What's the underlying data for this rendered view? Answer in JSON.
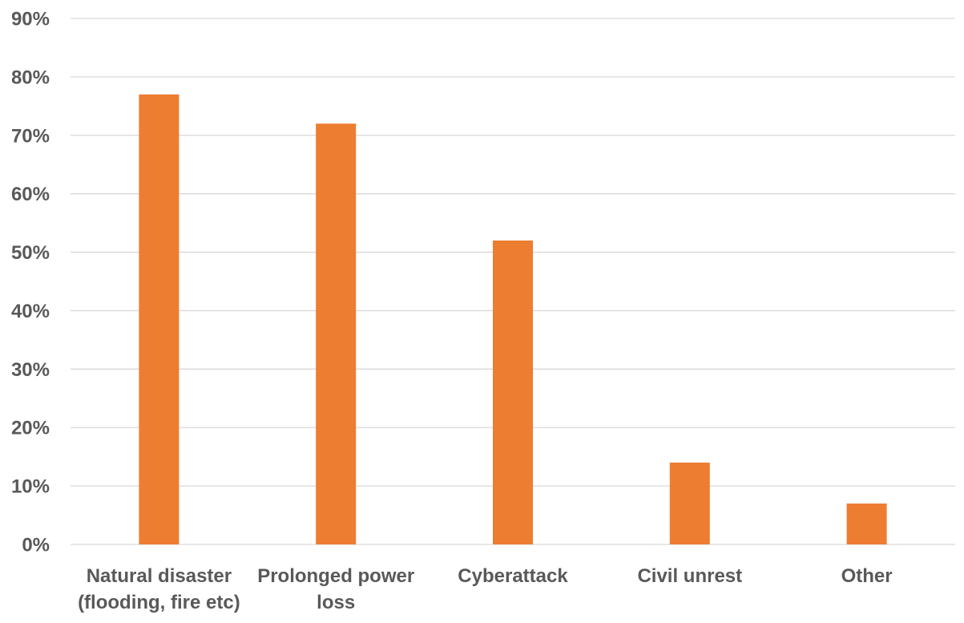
{
  "chart_data": {
    "type": "bar",
    "title": "",
    "xlabel": "",
    "ylabel": "",
    "categories": [
      [
        "Natural disaster",
        "(flooding, fire etc)"
      ],
      [
        "Prolonged power",
        "loss"
      ],
      [
        "Cyberattack"
      ],
      [
        "Civil unrest"
      ],
      [
        "Other"
      ]
    ],
    "values": [
      77,
      72,
      52,
      14,
      7
    ],
    "ylim": [
      0,
      90
    ],
    "yticks": [
      0,
      10,
      20,
      30,
      40,
      50,
      60,
      70,
      80,
      90
    ],
    "ytick_format": "percent",
    "grid": true,
    "legend": "none",
    "bar_color": "#ed7d31",
    "grid_color": "#d9d9d9",
    "label_color": "#595959"
  }
}
